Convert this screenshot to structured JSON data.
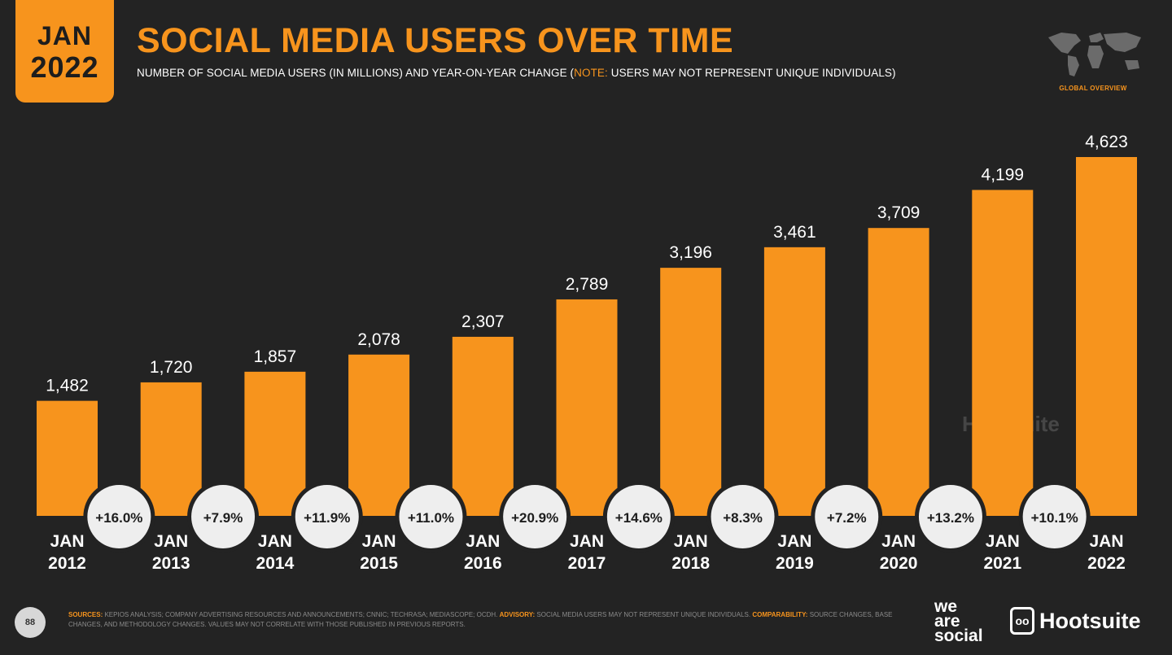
{
  "header": {
    "badge_month": "JAN",
    "badge_year": "2022",
    "title": "SOCIAL MEDIA USERS OVER TIME",
    "subtitle_pre": "NUMBER OF SOCIAL MEDIA USERS (IN MILLIONS) AND YEAR-ON-YEAR CHANGE (",
    "subtitle_note": "NOTE:",
    "subtitle_post": " USERS MAY NOT REPRESENT UNIQUE INDIVIDUALS)",
    "section_label": "GLOBAL OVERVIEW"
  },
  "chart_data": {
    "type": "bar",
    "categories": [
      "JAN 2012",
      "JAN 2013",
      "JAN 2014",
      "JAN 2015",
      "JAN 2016",
      "JAN 2017",
      "JAN 2018",
      "JAN 2019",
      "JAN 2020",
      "JAN 2021",
      "JAN 2022"
    ],
    "values": [
      1482,
      1720,
      1857,
      2078,
      2307,
      2789,
      3196,
      3461,
      3709,
      4199,
      4623
    ],
    "value_labels": [
      "1,482",
      "1,720",
      "1,857",
      "2,078",
      "2,307",
      "2,789",
      "3,196",
      "3,461",
      "3,709",
      "4,199",
      "4,623"
    ],
    "yoy_change": [
      "+16.0%",
      "+7.9%",
      "+11.9%",
      "+11.0%",
      "+20.9%",
      "+14.6%",
      "+8.3%",
      "+7.2%",
      "+13.2%",
      "+10.1%"
    ],
    "ylim": [
      0,
      4623
    ],
    "grid": false,
    "bar_color": "#F7941D"
  },
  "watermark": {
    "was_lines": [
      "we",
      "are",
      "social"
    ],
    "hootsuite": "Hootsuite"
  },
  "footer": {
    "page_number": "88",
    "sources_key": "SOURCES:",
    "sources_text": " KEPIOS ANALYSIS; COMPANY ADVERTISING RESOURCES AND ANNOUNCEMENTS; CNNIC; TECHRASA; MEDIASCOPE; OCDH. ",
    "advisory_key": "ADVISORY:",
    "advisory_text": " SOCIAL MEDIA USERS MAY NOT REPRESENT UNIQUE INDIVIDUALS. ",
    "comparability_key": "COMPARABILITY:",
    "comparability_text": " SOURCE CHANGES, BASE CHANGES, AND METHODOLOGY CHANGES. VALUES MAY NOT CORRELATE WITH THOSE PUBLISHED IN PREVIOUS REPORTS.",
    "logo_was": [
      "we",
      "are",
      "social"
    ],
    "logo_hootsuite": "Hootsuite"
  },
  "colors": {
    "accent": "#F7941D",
    "background": "#232323",
    "bubble": "#EEEEEE"
  }
}
